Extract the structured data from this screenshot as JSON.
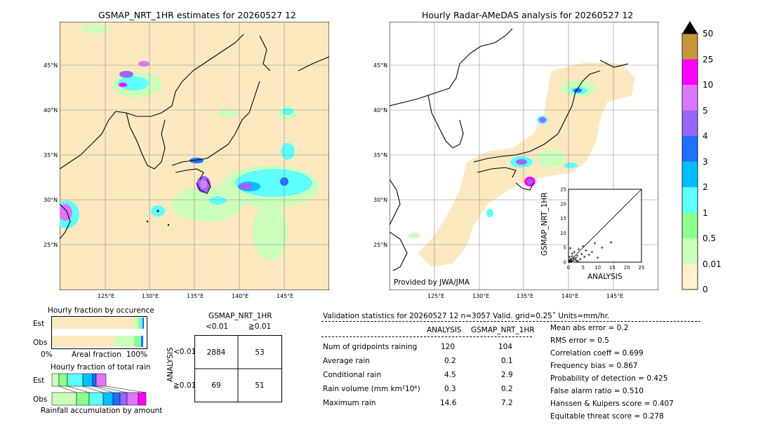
{
  "left_map": {
    "title": "GSMAP_NRT_1HR estimates for 20260527 12",
    "lat_labels": [
      "45°N",
      "40°N",
      "35°N",
      "30°N",
      "25°N"
    ],
    "lon_labels": [
      "125°E",
      "130°E",
      "135°E",
      "140°E",
      "145°E"
    ]
  },
  "right_map": {
    "title": "Hourly Radar-AMeDAS analysis for 20260527 12",
    "lat_labels": [
      "45°N",
      "40°N",
      "35°N",
      "30°N",
      "25°N"
    ],
    "lon_labels": [
      "125°E",
      "130°E",
      "135°E",
      "140°E",
      "145°E"
    ],
    "credit": "Provided by JWA/JMA"
  },
  "colorbar": {
    "labels": [
      "50",
      "25",
      "10",
      "5",
      "4",
      "3",
      "2",
      "1",
      "0.5",
      "0.01",
      "0"
    ],
    "colors": [
      "#c8963c",
      "#ff00ff",
      "#dd77ff",
      "#9966ff",
      "#1f6fff",
      "#00bfff",
      "#5fffff",
      "#8cff8c",
      "#ccffbb",
      "#fff2cc"
    ]
  },
  "chart_data": {
    "type": "scatter",
    "xlabel": "ANALYSIS",
    "ylabel": "GSMAP_NRT_1HR",
    "xlim": [
      0,
      25
    ],
    "ylim": [
      0,
      25
    ],
    "ticks": [
      "0",
      "5",
      "10",
      "15",
      "20",
      "25"
    ],
    "points": [
      [
        0.2,
        0.1
      ],
      [
        0.4,
        0.3
      ],
      [
        0.5,
        0.8
      ],
      [
        0.7,
        0.2
      ],
      [
        0.9,
        1.1
      ],
      [
        1.0,
        0.4
      ],
      [
        1.2,
        2.0
      ],
      [
        1.5,
        0.6
      ],
      [
        1.8,
        1.3
      ],
      [
        2.0,
        3.5
      ],
      [
        2.2,
        0.8
      ],
      [
        2.5,
        1.5
      ],
      [
        3.0,
        2.2
      ],
      [
        3.2,
        0.3
      ],
      [
        3.5,
        4.5
      ],
      [
        4.0,
        1.0
      ],
      [
        4.5,
        2.8
      ],
      [
        5.0,
        5.5
      ],
      [
        5.5,
        1.8
      ],
      [
        6.0,
        4.0
      ],
      [
        7.0,
        2.5
      ],
      [
        8.0,
        3.5
      ],
      [
        9.0,
        6.5
      ],
      [
        10.0,
        1.5
      ],
      [
        11.5,
        5.0
      ],
      [
        14.6,
        6.8
      ],
      [
        0.6,
        4.8
      ],
      [
        1.3,
        3.0
      ],
      [
        0.3,
        1.8
      ],
      [
        2.8,
        0.5
      ]
    ]
  },
  "fraction_occurrence": {
    "title": "Hourly fraction by occurence",
    "row_labels": [
      "Est",
      "Obs"
    ],
    "axis_left": "0%",
    "axis_mid": "Areal fraction",
    "axis_right": "100%"
  },
  "fraction_total": {
    "title": "Hourly fraction of total rain",
    "row_labels": [
      "Est",
      "Obs"
    ],
    "footer": "Rainfall accumulation by amount"
  },
  "contingency": {
    "header": "GSMAP_NRT_1HR",
    "col_labels": [
      "<0.01",
      "≧0.01"
    ],
    "row_axis": "ANALYSIS",
    "row_labels": [
      "<0.01",
      "≧0.01"
    ],
    "cells": [
      "2884",
      "53",
      "69",
      "51"
    ]
  },
  "validation": {
    "header": "Validation statistics for 20260527 12  n=3057 Valid. grid=0.25˚ Units=mm/hr.",
    "col_analysis": "ANALYSIS",
    "col_gsmap": "GSMAP_NRT_1HR",
    "rows": [
      {
        "label": "Num of gridpoints raining",
        "a": "120",
        "g": "104"
      },
      {
        "label": "Average rain",
        "a": "0.2",
        "g": "0.1"
      },
      {
        "label": "Conditional rain",
        "a": "4.5",
        "g": "2.9"
      },
      {
        "label": "Rain volume (mm km²10⁶)",
        "a": "0.3",
        "g": "0.2"
      },
      {
        "label": "Maximum rain",
        "a": "14.6",
        "g": "7.2"
      }
    ],
    "scores": [
      "Mean abs error =    0.2",
      "RMS error =    0.5",
      "Correlation coeff =  0.699",
      "Frequency bias =  0.867",
      "Probability of detection =  0.425",
      "False alarm ratio =  0.510",
      "Hanssen & Kuipers score =  0.407",
      "Equitable threat score =  0.278"
    ]
  }
}
